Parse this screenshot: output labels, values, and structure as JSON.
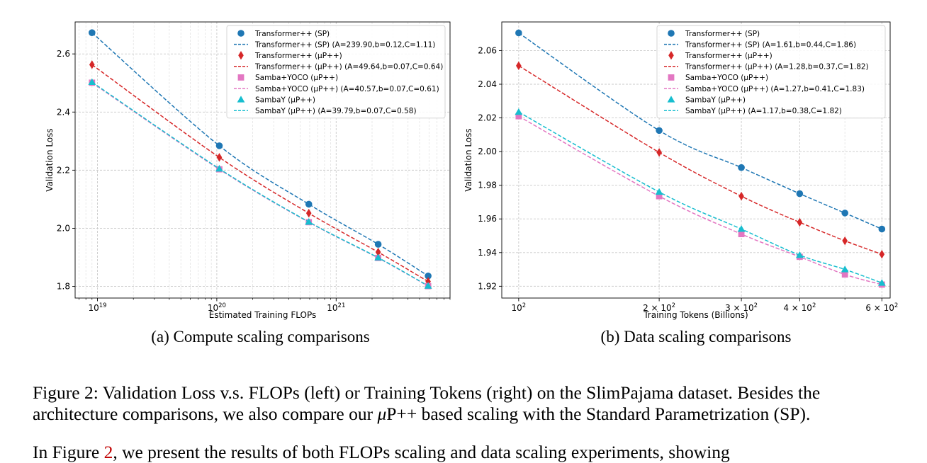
{
  "chart_data": [
    {
      "type": "scatter",
      "xlabel": "Estimated Training FLOPs",
      "ylabel": "Validation Loss",
      "xscale": "log",
      "xlim": [
        6.5e+18,
        9e+21
      ],
      "ylim": [
        1.76,
        2.71
      ],
      "xticks": [
        1e+19,
        1e+20,
        1e+21
      ],
      "xtick_labels": [
        {
          "base": "10",
          "exp": "19"
        },
        {
          "base": "10",
          "exp": "20"
        },
        {
          "base": "10",
          "exp": "21"
        }
      ],
      "yticks": [
        1.8,
        2.0,
        2.2,
        2.4,
        2.6
      ],
      "ytick_labels": [
        "1.8",
        "2.0",
        "2.2",
        "2.4",
        "2.6"
      ],
      "grid": true,
      "legend_position": "top-right",
      "caption": "(a) Compute scaling comparisons",
      "legend": [
        "Transformer++ (SP)",
        "Transformer++ (SP) (A=239.90,b=0.12,C=1.11)",
        "Transformer++ (μP++)",
        "Transformer++ (μP++) (A=49.64,b=0.07,C=0.64)",
        "Samba+YOCO (μP++)",
        "Samba+YOCO (μP++) (A=40.57,b=0.07,C=0.61)",
        "SambaY (μP++)",
        "SambaY (μP++) (A=39.79,b=0.07,C=0.58)"
      ],
      "series": [
        {
          "name": "Transformer++ (SP)",
          "marker": "circle",
          "color": "#1f77b4",
          "points": [
            [
              9e+18,
              2.673
            ],
            [
              1.05e+20,
              2.284
            ],
            [
              5.9e+20,
              2.083
            ],
            [
              2.25e+21,
              1.945
            ],
            [
              5.9e+21,
              1.836
            ]
          ],
          "fit": {
            "A": 239.9,
            "b": 0.12,
            "C": 1.11
          }
        },
        {
          "name": "Transformer++ (μP++)",
          "marker": "diamond",
          "color": "#d62728",
          "points": [
            [
              9e+18,
              2.563
            ],
            [
              1.05e+20,
              2.244
            ],
            [
              5.9e+20,
              2.052
            ],
            [
              2.25e+21,
              1.918
            ],
            [
              5.9e+21,
              1.817
            ]
          ],
          "fit": {
            "A": 49.64,
            "b": 0.07,
            "C": 0.64
          }
        },
        {
          "name": "Samba+YOCO (μP++)",
          "marker": "square",
          "color": "#e377c2",
          "points": [
            [
              9e+18,
              2.501
            ],
            [
              1.05e+20,
              2.203
            ],
            [
              5.9e+20,
              2.021
            ],
            [
              2.25e+21,
              1.898
            ],
            [
              5.9e+21,
              1.801
            ]
          ],
          "fit": {
            "A": 40.57,
            "b": 0.07,
            "C": 0.61
          }
        },
        {
          "name": "SambaY (μP++)",
          "marker": "triangle",
          "color": "#17becf",
          "points": [
            [
              9e+18,
              2.503
            ],
            [
              1.05e+20,
              2.205
            ],
            [
              5.9e+20,
              2.022
            ],
            [
              2.25e+21,
              1.899
            ],
            [
              5.9e+21,
              1.802
            ]
          ],
          "fit": {
            "A": 39.79,
            "b": 0.07,
            "C": 0.58
          }
        }
      ]
    },
    {
      "type": "scatter",
      "xlabel": "Training Tokens (Billions)",
      "ylabel": "Validation Loss",
      "xscale": "log",
      "xlim": [
        92,
        625
      ],
      "ylim": [
        1.913,
        2.077
      ],
      "xticks": [
        100,
        200,
        300,
        400,
        600
      ],
      "xtick_labels": [
        {
          "base": "10",
          "exp": "2"
        },
        {
          "base": "2 × 10",
          "exp": "2"
        },
        {
          "base": "3 × 10",
          "exp": "2"
        },
        {
          "base": "4 × 10",
          "exp": "2"
        },
        {
          "base": "6 × 10",
          "exp": "2"
        }
      ],
      "yticks": [
        1.92,
        1.94,
        1.96,
        1.98,
        2.0,
        2.02,
        2.04,
        2.06
      ],
      "ytick_labels": [
        "1.92",
        "1.94",
        "1.96",
        "1.98",
        "2.00",
        "2.02",
        "2.04",
        "2.06"
      ],
      "grid": true,
      "legend_position": "top-right",
      "caption": "(b) Data scaling comparisons",
      "legend": [
        "Transformer++ (SP)",
        "Transformer++ (SP) (A=1.61,b=0.44,C=1.86)",
        "Transformer++ (μP++)",
        "Transformer++ (μP++) (A=1.28,b=0.37,C=1.82)",
        "Samba+YOCO (μP++)",
        "Samba+YOCO (μP++) (A=1.27,b=0.41,C=1.83)",
        "SambaY (μP++)",
        "SambaY (μP++) (A=1.17,b=0.38,C=1.82)"
      ],
      "series": [
        {
          "name": "Transformer++ (SP)",
          "marker": "circle",
          "color": "#1f77b4",
          "points": [
            [
              100,
              2.0705
            ],
            [
              200,
              2.0125
            ],
            [
              300,
              1.9905
            ],
            [
              400,
              1.975
            ],
            [
              500,
              1.9635
            ],
            [
              600,
              1.954
            ]
          ],
          "fit": {
            "A": 1.61,
            "b": 0.44,
            "C": 1.86
          }
        },
        {
          "name": "Transformer++ (μP++)",
          "marker": "diamond",
          "color": "#d62728",
          "points": [
            [
              100,
              2.051
            ],
            [
              200,
              1.9995
            ],
            [
              300,
              1.9735
            ],
            [
              400,
              1.958
            ],
            [
              500,
              1.947
            ],
            [
              600,
              1.939
            ]
          ],
          "fit": {
            "A": 1.28,
            "b": 0.37,
            "C": 1.82
          }
        },
        {
          "name": "Samba+YOCO (μP++)",
          "marker": "square",
          "color": "#e377c2",
          "points": [
            [
              100,
              2.021
            ],
            [
              200,
              1.9735
            ],
            [
              300,
              1.951
            ],
            [
              400,
              1.9375
            ],
            [
              500,
              1.927
            ],
            [
              600,
              1.921
            ]
          ],
          "fit": {
            "A": 1.27,
            "b": 0.41,
            "C": 1.83
          }
        },
        {
          "name": "SambaY (μP++)",
          "marker": "triangle",
          "color": "#17becf",
          "points": [
            [
              100,
              2.0235
            ],
            [
              200,
              1.976
            ],
            [
              300,
              1.954
            ],
            [
              400,
              1.9385
            ],
            [
              500,
              1.93
            ],
            [
              600,
              1.922
            ]
          ],
          "fit": {
            "A": 1.17,
            "b": 0.38,
            "C": 1.82
          }
        }
      ]
    }
  ],
  "figure_caption": {
    "part1": "Figure 2: Validation Loss v.s. FLOPs (left) or Training Tokens (right) on the SlimPajama dataset. Besides the architecture comparisons, we also compare our ",
    "mu": "μ",
    "part2": "P++ based scaling with the Standard Parametrization (SP)."
  },
  "body_text": {
    "pre": "In Figure ",
    "ref": "2",
    "post": ", we present the results of both FLOPs scaling and data scaling experiments, showing"
  }
}
